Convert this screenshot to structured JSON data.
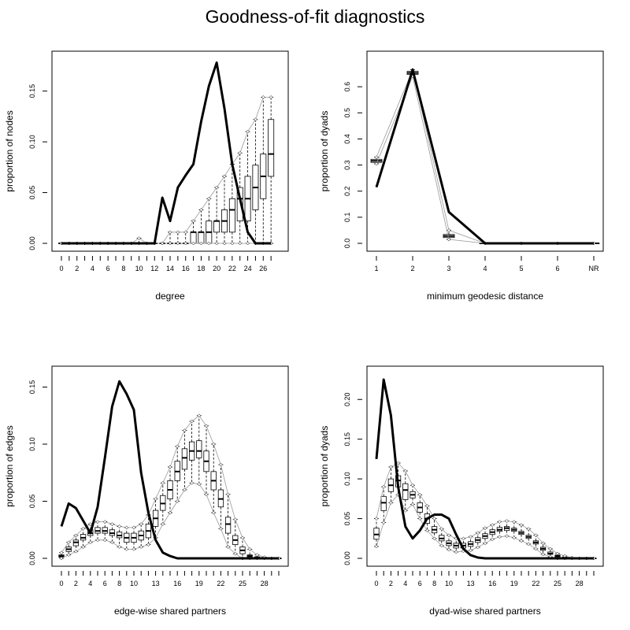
{
  "title": "Goodness-of-fit diagnostics",
  "chart_data": [
    {
      "type": "boxplot",
      "xlabel": "degree",
      "ylabel": "proportion of nodes",
      "xlim": [
        0,
        28
      ],
      "ylim": [
        0,
        0.18
      ],
      "xtick_values": [
        0,
        2,
        4,
        6,
        8,
        10,
        12,
        14,
        16,
        18,
        20,
        22,
        24,
        26
      ],
      "xtick_labels": [
        "0",
        "2",
        "4",
        "6",
        "8",
        "10",
        "12",
        "14",
        "16",
        "18",
        "20",
        "22",
        "24",
        "26"
      ],
      "ytick_values": [
        0,
        0.05,
        0.1,
        0.15
      ],
      "ytick_labels": [
        "0.00",
        "0.05",
        "0.10",
        "0.15"
      ],
      "x": [
        0,
        1,
        2,
        3,
        4,
        5,
        6,
        7,
        8,
        9,
        10,
        11,
        12,
        13,
        14,
        15,
        16,
        17,
        18,
        19,
        20,
        21,
        22,
        23,
        24,
        25,
        26,
        27
      ],
      "observed": [
        0,
        0,
        0,
        0,
        0,
        0,
        0,
        0,
        0,
        0,
        0,
        0,
        0,
        0.045,
        0.022,
        0.055,
        0.067,
        0.078,
        0.12,
        0.155,
        0.178,
        0.133,
        0.078,
        0.044,
        0.011,
        0,
        0,
        0
      ],
      "box_q1": [
        0,
        0,
        0,
        0,
        0,
        0,
        0,
        0,
        0,
        0,
        0,
        0,
        0,
        0,
        0,
        0,
        0,
        0,
        0,
        0,
        0.011,
        0.011,
        0.011,
        0.022,
        0.022,
        0.033,
        0.044,
        0.066
      ],
      "box_med": [
        0,
        0,
        0,
        0,
        0,
        0,
        0,
        0,
        0,
        0,
        0,
        0,
        0,
        0,
        0,
        0,
        0,
        0.011,
        0.011,
        0.011,
        0.022,
        0.022,
        0.033,
        0.044,
        0.044,
        0.055,
        0.066,
        0.088
      ],
      "box_q3": [
        0,
        0,
        0,
        0,
        0,
        0,
        0,
        0,
        0,
        0,
        0,
        0,
        0,
        0,
        0,
        0,
        0,
        0.011,
        0.011,
        0.022,
        0.022,
        0.033,
        0.044,
        0.055,
        0.066,
        0.077,
        0.088,
        0.122
      ],
      "whisk_lo": [
        0,
        0,
        0,
        0,
        0,
        0,
        0,
        0,
        0,
        0,
        0,
        0,
        0,
        0,
        0,
        0,
        0,
        0,
        0,
        0,
        0,
        0,
        0,
        0,
        0,
        0,
        0,
        0
      ],
      "whisk_hi": [
        0,
        0,
        0,
        0,
        0,
        0,
        0,
        0,
        0,
        0,
        0.005,
        0,
        0,
        0,
        0.011,
        0.011,
        0.011,
        0.022,
        0.033,
        0.044,
        0.055,
        0.066,
        0.078,
        0.089,
        0.11,
        0.122,
        0.144,
        0.144
      ]
    },
    {
      "type": "boxplot",
      "xlabel": "minimum geodesic distance",
      "ylabel": "proportion of dyads",
      "xlim": [
        1,
        7
      ],
      "ylim": [
        0,
        0.7
      ],
      "xtick_values": [
        1,
        2,
        3,
        4,
        5,
        6,
        7
      ],
      "xtick_labels": [
        "1",
        "2",
        "3",
        "4",
        "5",
        "6",
        "NR"
      ],
      "ytick_values": [
        0,
        0.1,
        0.2,
        0.3,
        0.4,
        0.5,
        0.6
      ],
      "ytick_labels": [
        "0.0",
        "0.1",
        "0.2",
        "0.3",
        "0.4",
        "0.5",
        "0.6"
      ],
      "x": [
        1,
        2,
        3,
        4,
        5,
        6,
        7
      ],
      "observed": [
        0.215,
        0.665,
        0.12,
        0,
        0,
        0,
        0
      ],
      "box_q1": [
        0.31,
        0.647,
        0.022,
        0,
        0,
        0,
        0
      ],
      "box_med": [
        0.316,
        0.653,
        0.028,
        0,
        0,
        0,
        0
      ],
      "box_q3": [
        0.322,
        0.659,
        0.034,
        0,
        0,
        0,
        0
      ],
      "whisk_lo": [
        0.305,
        0.64,
        0.015,
        0,
        0,
        0,
        0
      ],
      "whisk_hi": [
        0.33,
        0.665,
        0.05,
        0,
        0,
        0,
        0
      ]
    },
    {
      "type": "boxplot",
      "xlabel": "edge-wise shared partners",
      "ylabel": "proportion of edges",
      "xlim": [
        0,
        30
      ],
      "ylim": [
        0,
        0.16
      ],
      "xtick_values": [
        0,
        2,
        4,
        6,
        8,
        10,
        13,
        16,
        19,
        22,
        25,
        28
      ],
      "xtick_labels": [
        "0",
        "2",
        "4",
        "6",
        "8",
        "10",
        "13",
        "16",
        "19",
        "22",
        "25",
        "28"
      ],
      "ytick_values": [
        0,
        0.05,
        0.1,
        0.15
      ],
      "ytick_labels": [
        "0.00",
        "0.05",
        "0.10",
        "0.15"
      ],
      "x": [
        0,
        1,
        2,
        3,
        4,
        5,
        6,
        7,
        8,
        9,
        10,
        11,
        12,
        13,
        14,
        15,
        16,
        17,
        18,
        19,
        20,
        21,
        22,
        23,
        24,
        25,
        26,
        27,
        28,
        29,
        30
      ],
      "observed": [
        0.028,
        0.048,
        0.044,
        0.033,
        0.022,
        0.045,
        0.088,
        0.133,
        0.155,
        0.144,
        0.13,
        0.075,
        0.04,
        0.016,
        0.005,
        0.002,
        0,
        0,
        0,
        0,
        0,
        0,
        0,
        0,
        0,
        0,
        0,
        0,
        0,
        0,
        0
      ],
      "box_q1": [
        0.001,
        0.006,
        0.011,
        0.016,
        0.02,
        0.022,
        0.022,
        0.02,
        0.018,
        0.014,
        0.014,
        0.016,
        0.018,
        0.028,
        0.042,
        0.052,
        0.068,
        0.078,
        0.086,
        0.088,
        0.076,
        0.06,
        0.045,
        0.022,
        0.012,
        0.004,
        0.001,
        0,
        0,
        0,
        0
      ],
      "box_med": [
        0.002,
        0.008,
        0.014,
        0.018,
        0.022,
        0.024,
        0.024,
        0.022,
        0.02,
        0.018,
        0.018,
        0.02,
        0.024,
        0.035,
        0.048,
        0.06,
        0.076,
        0.088,
        0.094,
        0.094,
        0.085,
        0.068,
        0.052,
        0.03,
        0.016,
        0.007,
        0.002,
        0.001,
        0,
        0,
        0
      ],
      "box_q3": [
        0.003,
        0.01,
        0.016,
        0.021,
        0.025,
        0.027,
        0.027,
        0.025,
        0.023,
        0.022,
        0.022,
        0.024,
        0.03,
        0.042,
        0.055,
        0.068,
        0.085,
        0.096,
        0.102,
        0.103,
        0.094,
        0.076,
        0.06,
        0.036,
        0.02,
        0.01,
        0.003,
        0.001,
        0,
        0,
        0
      ],
      "whisk_lo": [
        0,
        0.003,
        0.006,
        0.01,
        0.014,
        0.016,
        0.016,
        0.014,
        0.01,
        0.008,
        0.008,
        0.01,
        0.012,
        0.018,
        0.03,
        0.04,
        0.05,
        0.06,
        0.066,
        0.065,
        0.056,
        0.04,
        0.026,
        0.01,
        0.004,
        0,
        0,
        0,
        0,
        0,
        0
      ],
      "whisk_hi": [
        0.005,
        0.014,
        0.02,
        0.026,
        0.03,
        0.032,
        0.032,
        0.03,
        0.028,
        0.027,
        0.027,
        0.03,
        0.038,
        0.052,
        0.066,
        0.08,
        0.098,
        0.112,
        0.12,
        0.125,
        0.116,
        0.1,
        0.082,
        0.056,
        0.034,
        0.018,
        0.008,
        0.003,
        0.001,
        0,
        0
      ]
    },
    {
      "type": "boxplot",
      "xlabel": "dyad-wise shared partners",
      "ylabel": "proportion of dyads",
      "xlim": [
        0,
        30
      ],
      "ylim": [
        0,
        0.23
      ],
      "xtick_values": [
        0,
        2,
        4,
        6,
        8,
        10,
        13,
        16,
        19,
        22,
        25,
        28
      ],
      "xtick_labels": [
        "0",
        "2",
        "4",
        "6",
        "8",
        "10",
        "13",
        "16",
        "19",
        "22",
        "25",
        "28"
      ],
      "ytick_values": [
        0,
        0.05,
        0.1,
        0.15,
        0.2
      ],
      "ytick_labels": [
        "0.00",
        "0.05",
        "0.10",
        "0.15",
        "0.20"
      ],
      "x": [
        0,
        1,
        2,
        3,
        4,
        5,
        6,
        7,
        8,
        9,
        10,
        11,
        12,
        13,
        14,
        15,
        16,
        17,
        18,
        19,
        20,
        21,
        22,
        23,
        24,
        25,
        26,
        27,
        28,
        29,
        30
      ],
      "observed": [
        0.125,
        0.225,
        0.18,
        0.09,
        0.04,
        0.025,
        0.035,
        0.05,
        0.055,
        0.055,
        0.05,
        0.03,
        0.012,
        0.004,
        0.001,
        0,
        0,
        0,
        0,
        0,
        0,
        0,
        0,
        0,
        0,
        0,
        0,
        0,
        0,
        0,
        0
      ],
      "box_q1": [
        0.024,
        0.06,
        0.084,
        0.09,
        0.074,
        0.076,
        0.058,
        0.044,
        0.032,
        0.022,
        0.016,
        0.013,
        0.013,
        0.015,
        0.02,
        0.025,
        0.03,
        0.034,
        0.035,
        0.034,
        0.03,
        0.025,
        0.018,
        0.01,
        0.005,
        0.002,
        0.001,
        0,
        0,
        0,
        0
      ],
      "box_med": [
        0.03,
        0.07,
        0.092,
        0.098,
        0.086,
        0.08,
        0.064,
        0.05,
        0.036,
        0.025,
        0.019,
        0.016,
        0.016,
        0.018,
        0.023,
        0.028,
        0.033,
        0.036,
        0.038,
        0.036,
        0.032,
        0.027,
        0.02,
        0.012,
        0.006,
        0.003,
        0.001,
        0,
        0,
        0,
        0
      ],
      "box_q3": [
        0.038,
        0.078,
        0.1,
        0.104,
        0.094,
        0.084,
        0.07,
        0.056,
        0.04,
        0.029,
        0.022,
        0.019,
        0.019,
        0.021,
        0.026,
        0.031,
        0.036,
        0.039,
        0.04,
        0.038,
        0.034,
        0.029,
        0.022,
        0.014,
        0.008,
        0.004,
        0.001,
        0,
        0,
        0,
        0
      ],
      "whisk_lo": [
        0.015,
        0.045,
        0.07,
        0.08,
        0.06,
        0.068,
        0.05,
        0.035,
        0.025,
        0.016,
        0.011,
        0.008,
        0.009,
        0.01,
        0.014,
        0.019,
        0.024,
        0.027,
        0.028,
        0.026,
        0.022,
        0.018,
        0.012,
        0.005,
        0.002,
        0,
        0,
        0,
        0,
        0,
        0
      ],
      "whisk_hi": [
        0.05,
        0.09,
        0.115,
        0.12,
        0.11,
        0.092,
        0.08,
        0.066,
        0.05,
        0.037,
        0.029,
        0.025,
        0.025,
        0.027,
        0.032,
        0.038,
        0.042,
        0.046,
        0.047,
        0.046,
        0.042,
        0.037,
        0.029,
        0.019,
        0.012,
        0.006,
        0.003,
        0.001,
        0,
        0,
        0
      ]
    }
  ]
}
